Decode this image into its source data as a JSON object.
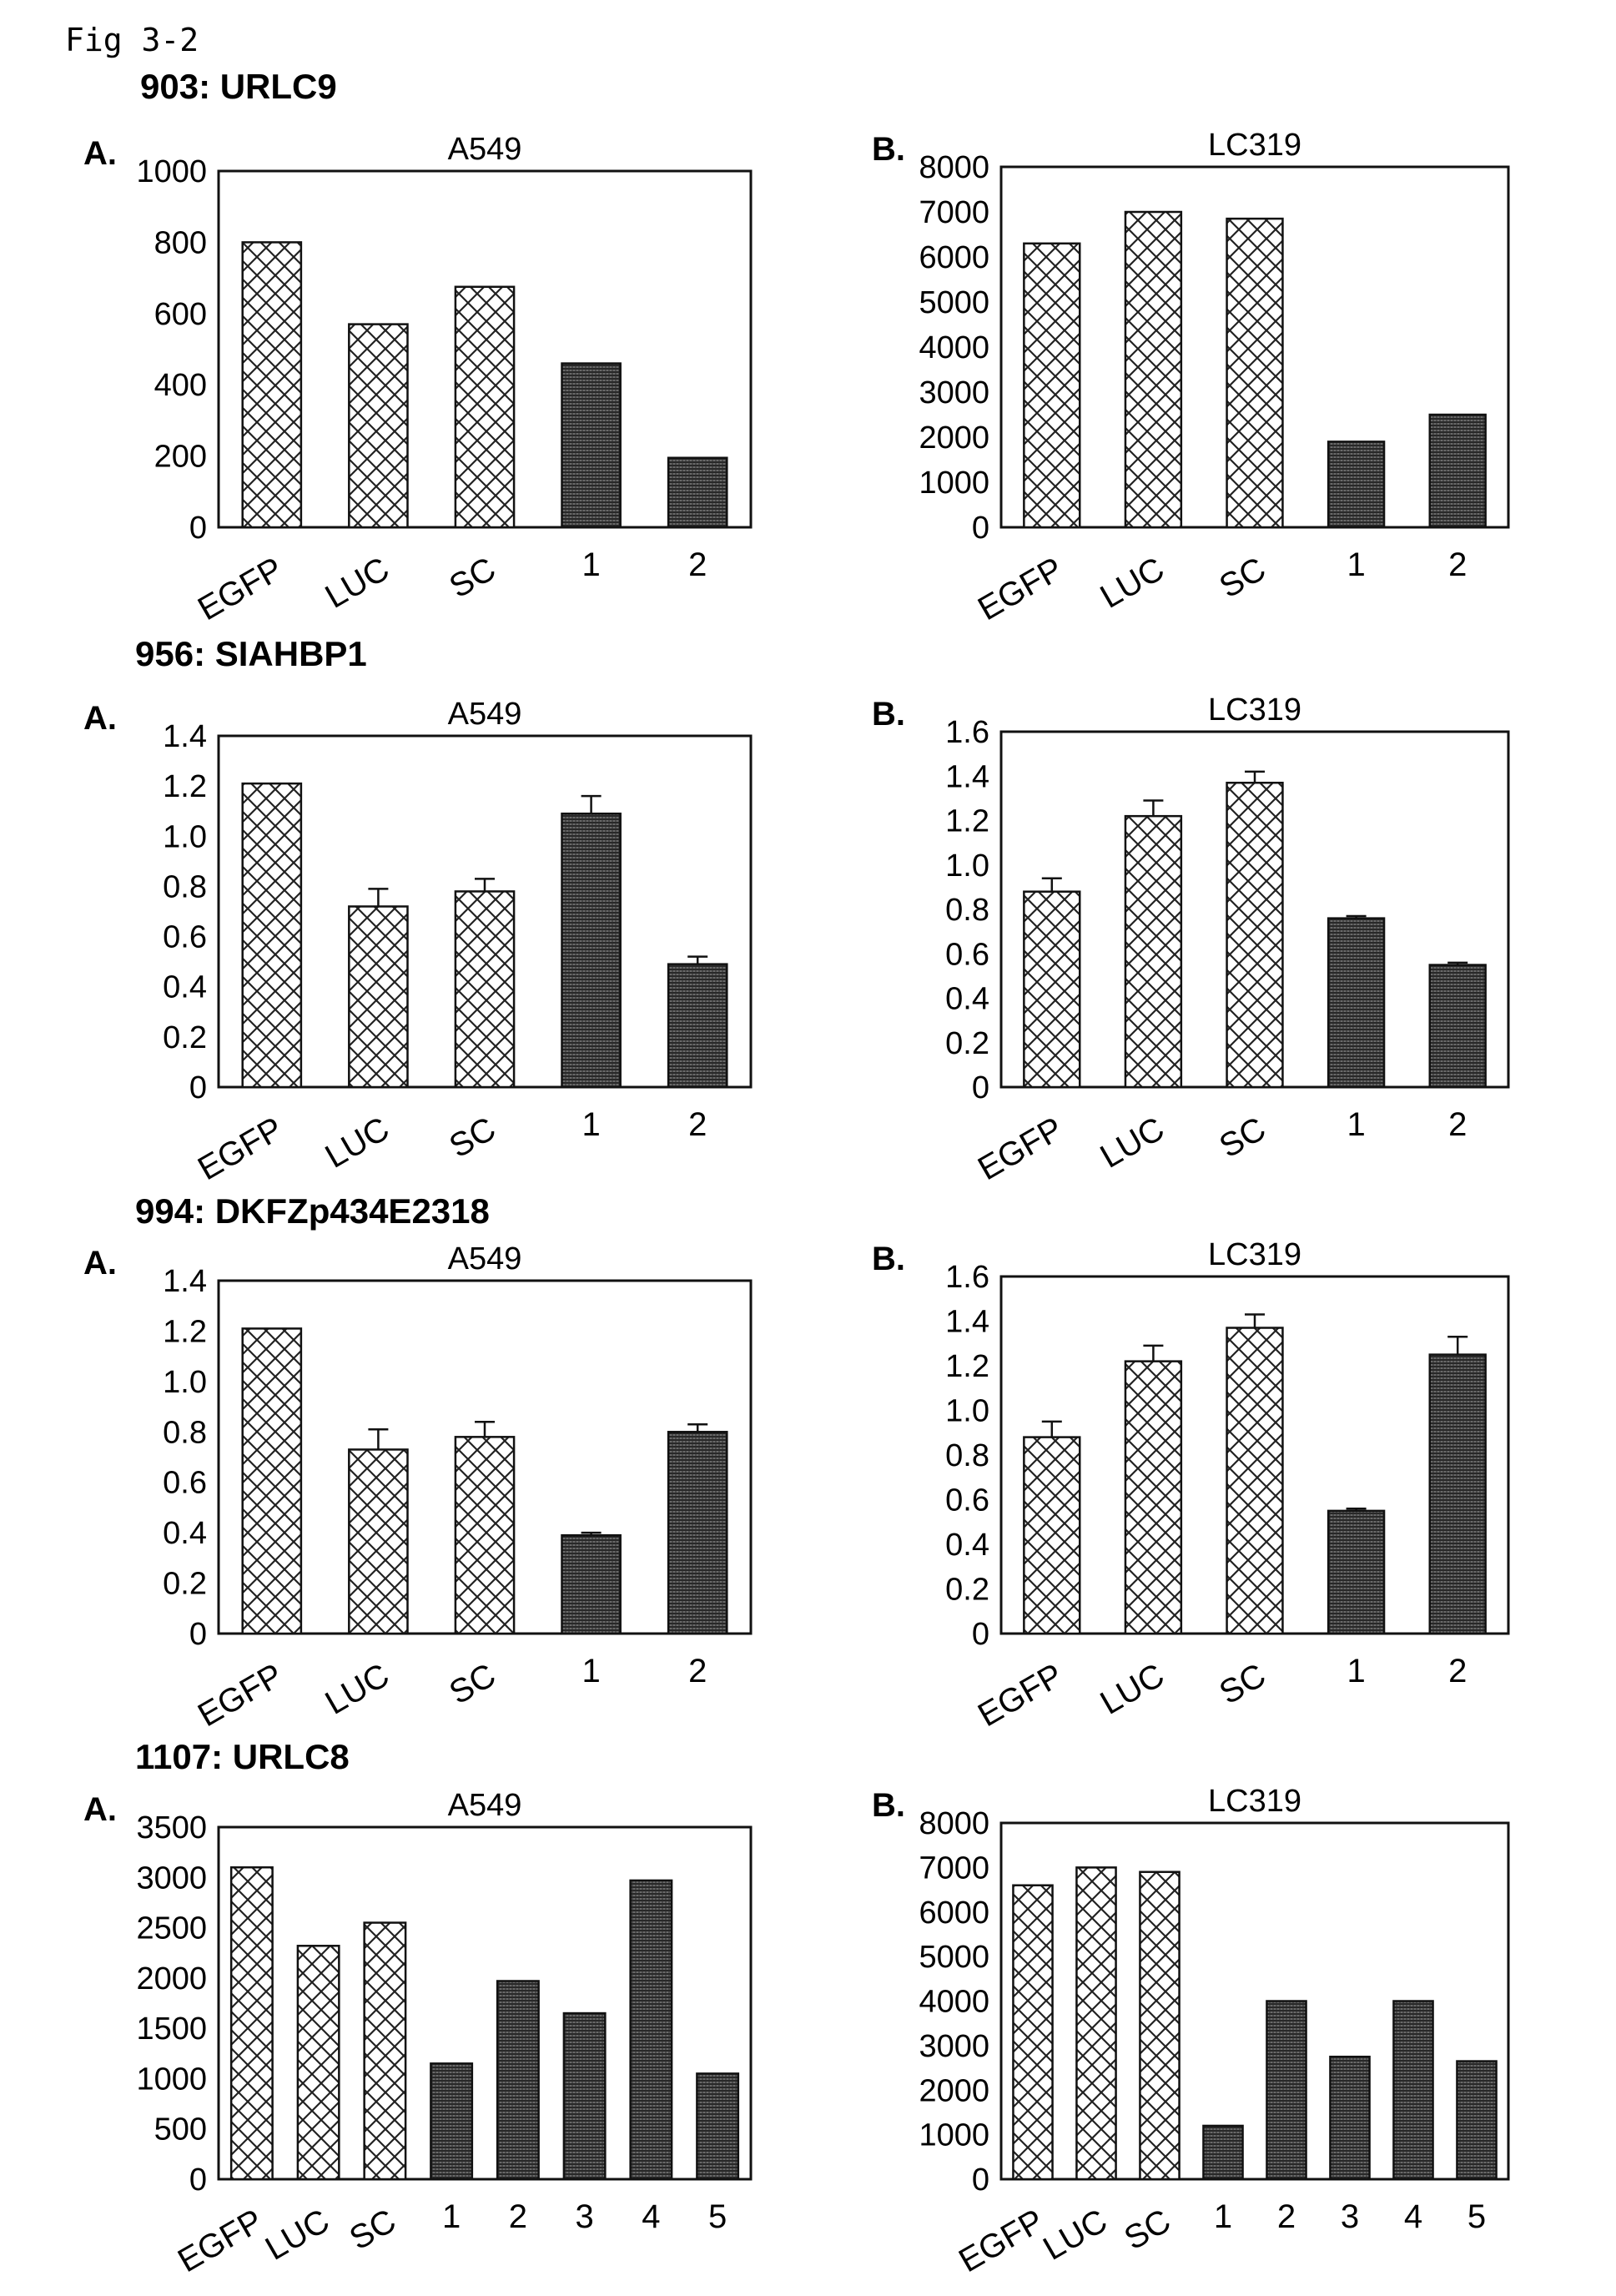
{
  "figure_label": "Fig 3-2",
  "colors": {
    "ink": "#111111",
    "paper": "#ffffff",
    "crosshatch": "#222222",
    "dense": "#333333"
  },
  "sections": [
    {
      "title": "903: URLC9"
    },
    {
      "title": "956: SIAHBP1"
    },
    {
      "title": "994: DKFZp434E2318"
    },
    {
      "title": "1107: URLC8"
    }
  ],
  "chart_data": [
    {
      "type": "bar",
      "panel": "A.",
      "title": "A549",
      "categories": [
        "EGFP",
        "LUC",
        "SC",
        "1",
        "2"
      ],
      "values": [
        800,
        570,
        675,
        460,
        195
      ],
      "yticks": [
        "0",
        "200",
        "400",
        "600",
        "800",
        "1000"
      ],
      "ylim": [
        0,
        1000
      ],
      "error_bars": null,
      "patterns": [
        "crosshatch",
        "crosshatch",
        "crosshatch",
        "dense",
        "dense"
      ]
    },
    {
      "type": "bar",
      "panel": "B.",
      "title": "LC319",
      "categories": [
        "EGFP",
        "LUC",
        "SC",
        "1",
        "2"
      ],
      "values": [
        6300,
        7000,
        6850,
        1900,
        2500
      ],
      "yticks": [
        "0",
        "1000",
        "2000",
        "3000",
        "4000",
        "5000",
        "6000",
        "7000",
        "8000"
      ],
      "ylim": [
        0,
        8000
      ],
      "error_bars": null,
      "patterns": [
        "crosshatch",
        "crosshatch",
        "crosshatch",
        "dense",
        "dense"
      ]
    },
    {
      "type": "bar",
      "panel": "A.",
      "title": "A549",
      "categories": [
        "EGFP",
        "LUC",
        "SC",
        "1",
        "2"
      ],
      "values": [
        1.21,
        0.72,
        0.78,
        1.09,
        0.49
      ],
      "error_bars": [
        0,
        0.07,
        0.05,
        0.07,
        0.03
      ],
      "yticks": [
        "0",
        "0.2",
        "0.4",
        "0.6",
        "0.8",
        "1.0",
        "1.2",
        "1.4"
      ],
      "ylim": [
        0,
        1.4
      ],
      "patterns": [
        "crosshatch",
        "crosshatch",
        "crosshatch",
        "dense",
        "dense"
      ]
    },
    {
      "type": "bar",
      "panel": "B.",
      "title": "LC319",
      "categories": [
        "EGFP",
        "LUC",
        "SC",
        "1",
        "2"
      ],
      "values": [
        0.88,
        1.22,
        1.37,
        0.76,
        0.55
      ],
      "error_bars": [
        0.06,
        0.07,
        0.05,
        0.01,
        0.01
      ],
      "yticks": [
        "0",
        "0.2",
        "0.4",
        "0.6",
        "0.8",
        "1.0",
        "1.2",
        "1.4",
        "1.6"
      ],
      "ylim": [
        0,
        1.6
      ],
      "patterns": [
        "crosshatch",
        "crosshatch",
        "crosshatch",
        "dense",
        "dense"
      ]
    },
    {
      "type": "bar",
      "panel": "A.",
      "title": "A549",
      "categories": [
        "EGFP",
        "LUC",
        "SC",
        "1",
        "2"
      ],
      "values": [
        1.21,
        0.73,
        0.78,
        0.39,
        0.8
      ],
      "error_bars": [
        0,
        0.08,
        0.06,
        0.01,
        0.03
      ],
      "yticks": [
        "0",
        "0.2",
        "0.4",
        "0.6",
        "0.8",
        "1.0",
        "1.2",
        "1.4"
      ],
      "ylim": [
        0,
        1.4
      ],
      "patterns": [
        "crosshatch",
        "crosshatch",
        "crosshatch",
        "dense",
        "dense"
      ]
    },
    {
      "type": "bar",
      "panel": "B.",
      "title": "LC319",
      "categories": [
        "EGFP",
        "LUC",
        "SC",
        "1",
        "2"
      ],
      "values": [
        0.88,
        1.22,
        1.37,
        0.55,
        1.25
      ],
      "error_bars": [
        0.07,
        0.07,
        0.06,
        0.01,
        0.08
      ],
      "yticks": [
        "0",
        "0.2",
        "0.4",
        "0.6",
        "0.8",
        "1.0",
        "1.2",
        "1.4",
        "1.6"
      ],
      "ylim": [
        0,
        1.6
      ],
      "patterns": [
        "crosshatch",
        "crosshatch",
        "crosshatch",
        "dense",
        "dense"
      ]
    },
    {
      "type": "bar",
      "panel": "A.",
      "title": "A549",
      "categories": [
        "EGFP",
        "LUC",
        "SC",
        "1",
        "2",
        "3",
        "4",
        "5"
      ],
      "values": [
        3100,
        2320,
        2550,
        1150,
        1970,
        1650,
        2970,
        1050
      ],
      "yticks": [
        "0",
        "500",
        "1000",
        "1500",
        "2000",
        "2500",
        "3000",
        "3500"
      ],
      "ylim": [
        0,
        3500
      ],
      "error_bars": null,
      "patterns": [
        "crosshatch",
        "crosshatch",
        "crosshatch",
        "dense",
        "dense",
        "dense",
        "dense",
        "dense"
      ]
    },
    {
      "type": "bar",
      "panel": "B.",
      "title": "LC319",
      "categories": [
        "EGFP",
        "LUC",
        "SC",
        "1",
        "2",
        "3",
        "4",
        "5"
      ],
      "values": [
        6600,
        7000,
        6900,
        1200,
        4000,
        2750,
        4000,
        2650
      ],
      "yticks": [
        "0",
        "1000",
        "2000",
        "3000",
        "4000",
        "5000",
        "6000",
        "7000",
        "8000"
      ],
      "ylim": [
        0,
        8000
      ],
      "error_bars": null,
      "patterns": [
        "crosshatch",
        "crosshatch",
        "crosshatch",
        "dense",
        "dense",
        "dense",
        "dense",
        "dense"
      ]
    }
  ]
}
